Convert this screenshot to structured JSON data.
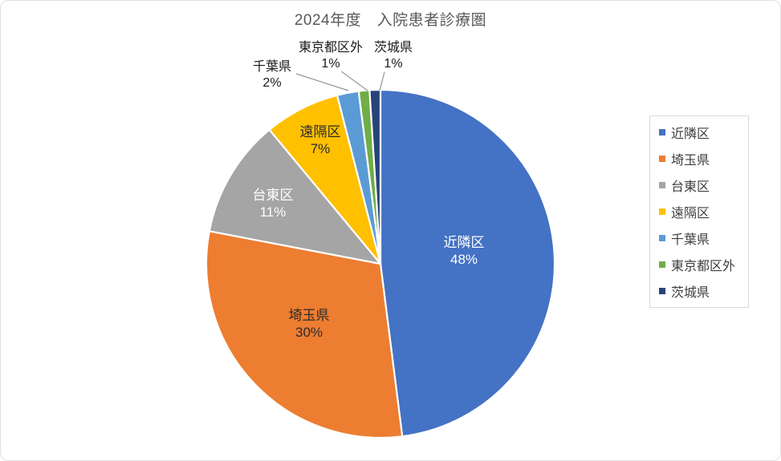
{
  "chart_data": {
    "type": "pie",
    "title": "2024年度　入院患者診療圏",
    "direction": "clockwise",
    "start_angle_deg": 0,
    "legend_position": "right",
    "slices": [
      {
        "label": "近隣区",
        "pct": 48,
        "pct_label": "48%",
        "color": "#4472C4",
        "label_color": "#FFFFFF",
        "placement": "inside"
      },
      {
        "label": "埼玉県",
        "pct": 30,
        "pct_label": "30%",
        "color": "#ED7D31",
        "label_color": "#2B2B2B",
        "placement": "inside"
      },
      {
        "label": "台東区",
        "pct": 11,
        "pct_label": "11%",
        "color": "#A5A5A5",
        "label_color": "#FFFFFF",
        "placement": "inside"
      },
      {
        "label": "遠隔区",
        "pct": 7,
        "pct_label": "7%",
        "color": "#FFC000",
        "label_color": "#2B2B2B",
        "placement": "inside"
      },
      {
        "label": "千葉県",
        "pct": 2,
        "pct_label": "2%",
        "color": "#5B9BD5",
        "label_color": "#1A1A1A",
        "placement": "outside"
      },
      {
        "label": "東京都区外",
        "pct": 1,
        "pct_label": "1%",
        "color": "#70AD47",
        "label_color": "#1A1A1A",
        "placement": "outside"
      },
      {
        "label": "茨城県",
        "pct": 1,
        "pct_label": "1%",
        "color": "#264478",
        "label_color": "#1A1A1A",
        "placement": "outside"
      }
    ],
    "colors": {
      "title_text": "#595959",
      "legend_text": "#3F3F3F",
      "legend_border": "#D9D9D9",
      "leader_line": "#808080",
      "slice_separator": "#FFFFFF"
    }
  }
}
